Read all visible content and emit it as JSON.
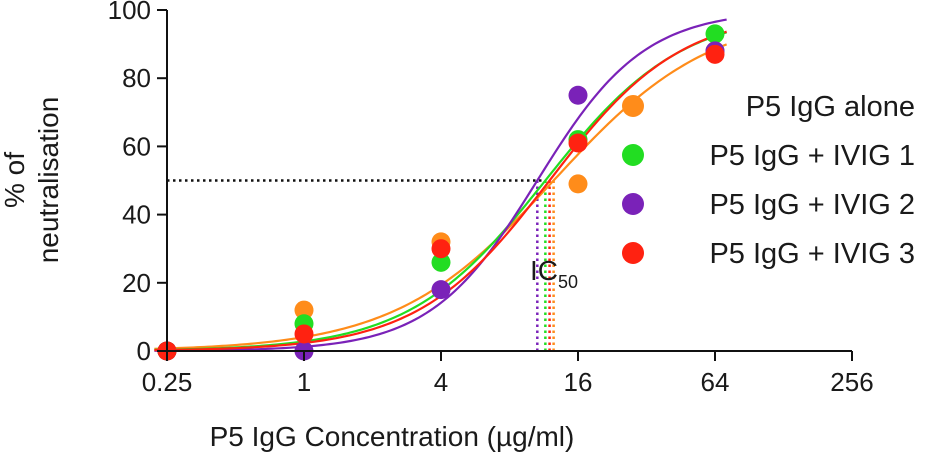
{
  "chart_data": {
    "type": "scatter",
    "title": "",
    "xlabel": "P5 IgG Concentration (µg/ml)",
    "ylabel_lines": [
      "% of",
      "neutralisation"
    ],
    "x_scale": "log2",
    "x_ticks": [
      0.25,
      1,
      4,
      16,
      64,
      256
    ],
    "x_tick_labels": [
      "0.25",
      "1",
      "4",
      "16",
      "64",
      "256"
    ],
    "y_ticks": [
      0,
      20,
      40,
      60,
      80,
      100
    ],
    "y_tick_labels": [
      "0",
      "20",
      "40",
      "60",
      "80",
      "100"
    ],
    "xlim": [
      0.25,
      256
    ],
    "ylim": [
      0,
      100
    ],
    "legend_position": "right",
    "annotation": {
      "text": "IC",
      "subscript": "50"
    },
    "ic50_level": 50,
    "series": [
      {
        "name": "P5 IgG alone",
        "color": "#FF8C1A",
        "x": [
          0.25,
          1,
          4,
          16,
          64
        ],
        "y": [
          0,
          12,
          32,
          49,
          88
        ],
        "ic50": 12.5,
        "hill": 1.25
      },
      {
        "name": "P5 IgG + IVIG 1",
        "color": "#22DD22",
        "x": [
          0.25,
          1,
          4,
          16,
          64
        ],
        "y": [
          0,
          8,
          26,
          62,
          93
        ],
        "ic50": 11.5,
        "hill": 1.45
      },
      {
        "name": "P5 IgG + IVIG 2",
        "color": "#7A22B8",
        "x": [
          0.25,
          1,
          4,
          16,
          64
        ],
        "y": [
          0,
          0,
          18,
          75,
          88
        ],
        "ic50": 10.6,
        "hill": 1.85
      },
      {
        "name": "P5 IgG + IVIG 3",
        "color": "#FF2211",
        "x": [
          0.25,
          1,
          4,
          16,
          64
        ],
        "y": [
          0,
          5,
          30,
          61,
          87
        ],
        "ic50": 12.0,
        "hill": 1.5
      }
    ]
  }
}
